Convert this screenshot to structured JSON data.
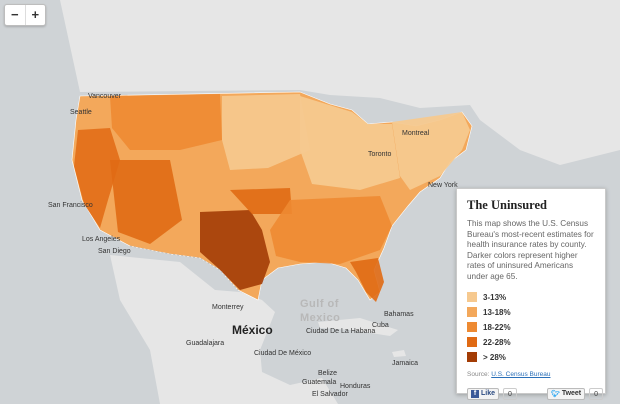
{
  "zoom": {
    "in_label": "+",
    "out_label": "−"
  },
  "panel": {
    "title": "The Uninsured",
    "description": "This map shows the U.S. Census Bureau's most-recent estimates for health insurance rates by county. Darker colors represent higher rates of uninsured Americans under age 65.",
    "legend": [
      {
        "label": "3-13%",
        "color": "#f6c98f"
      },
      {
        "label": "13-18%",
        "color": "#f3a85b"
      },
      {
        "label": "18-22%",
        "color": "#ee8a32"
      },
      {
        "label": "22-28%",
        "color": "#e06a14"
      },
      {
        "label": "> 28%",
        "color": "#a33c05"
      }
    ],
    "source_prefix": "Source:",
    "source_link": "U.S. Census Bureau",
    "share": {
      "like_label": "Like",
      "like_count": "0",
      "tweet_label": "Tweet",
      "tweet_count": "0"
    }
  },
  "map_labels": {
    "vancouver": "Vancouver",
    "seattle": "Seattle",
    "san_francisco": "San Francisco",
    "los_angeles": "Los Angeles",
    "san_diego": "San Diego",
    "montreal": "Montreal",
    "toronto": "Toronto",
    "new_york": "New York",
    "monterrey": "Monterrey",
    "mexico": "México",
    "ciudad_habana": "Ciudad De La Habana",
    "cuba": "Cuba",
    "bahamas": "Bahamas",
    "guadalajara": "Guadalajara",
    "ciudad_mexico": "Ciudad De México",
    "jamaica": "Jamaica",
    "belize": "Belize",
    "guatemala": "Guatemala",
    "honduras": "Honduras",
    "el_salvador": "El Salvador",
    "gulf1": "Gulf of",
    "gulf2": "Mexico"
  },
  "colors": {
    "land": "#e6e6e6",
    "water": "#cfd3d6",
    "border": "#ffffff",
    "low": "#f6c98f",
    "mid_low": "#f3a85b",
    "mid": "#ee8a32",
    "high": "#e06a14",
    "very_high": "#a33c05"
  }
}
